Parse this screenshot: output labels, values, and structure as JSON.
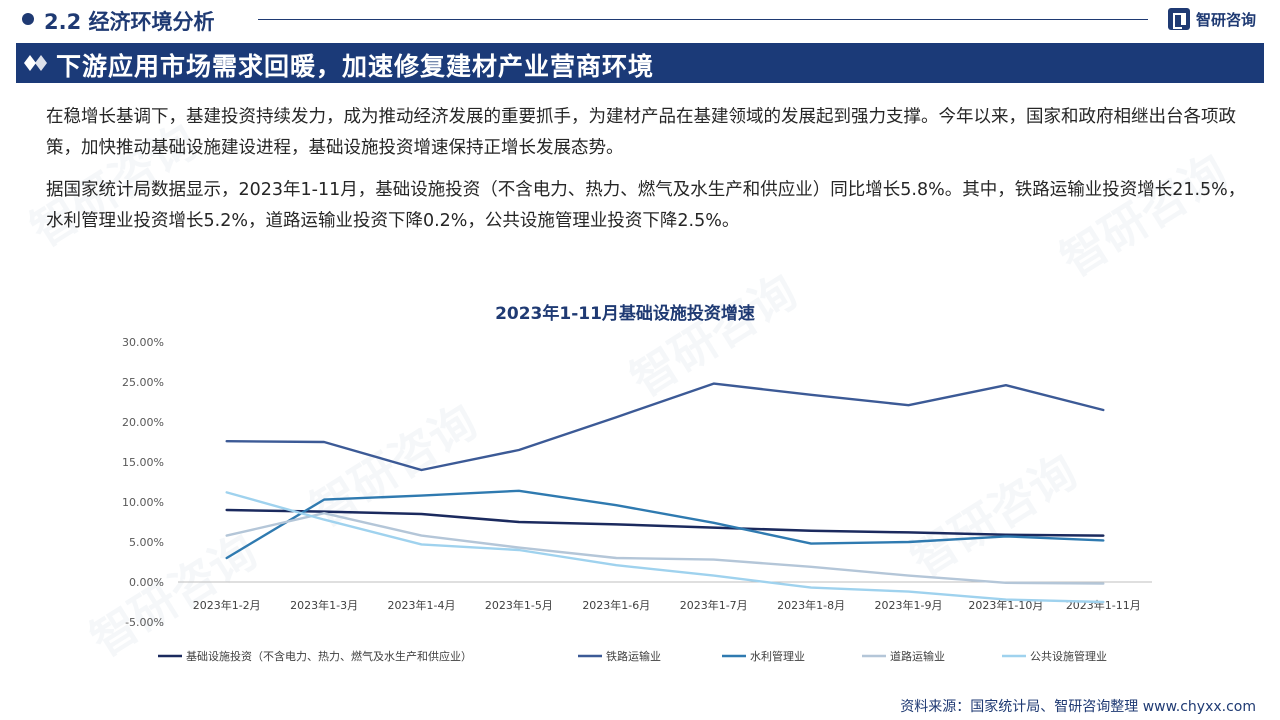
{
  "header": {
    "section_title": "2.2 经济环境分析",
    "logo_text": "智研咨询",
    "banner_title": "下游应用市场需求回暖，加速修复建材产业营商环境"
  },
  "body": {
    "paragraph_1": "在稳增长基调下，基建投资持续发力，成为推动经济发展的重要抓手，为建材产品在基建领域的发展起到强力支撑。今年以来，国家和政府相继出台各项政策，加快推动基础设施建设进程，基础设施投资增速保持正增长发展态势。",
    "paragraph_2": "据国家统计局数据显示，2023年1-11月，基础设施投资（不含电力、热力、燃气及水生产和供应业）同比增长5.8%。其中，铁路运输业投资增长21.5%，水利管理业投资增长5.2%，道路运输业投资下降0.2%，公共设施管理业投资下降2.5%。"
  },
  "watermark": "智研咨询",
  "source": "资料来源：国家统计局、智研咨询整理  www.chyxx.com",
  "colors": {
    "brand": "#1f3a73",
    "banner": "#1b3a78"
  },
  "chart_data": {
    "type": "line",
    "title": "2023年1-11月基础设施投资增速",
    "categories": [
      "2023年1-2月",
      "2023年1-3月",
      "2023年1-4月",
      "2023年1-5月",
      "2023年1-6月",
      "2023年1-7月",
      "2023年1-8月",
      "2023年1-9月",
      "2023年1-10月",
      "2023年1-11月"
    ],
    "y_ticks": [
      "30.00%",
      "25.00%",
      "20.00%",
      "15.00%",
      "10.00%",
      "5.00%",
      "0.00%",
      "-5.00%"
    ],
    "ylim": [
      -5,
      30
    ],
    "grid": false,
    "legend_position": "bottom",
    "series": [
      {
        "name": "基础设施投资（不含电力、热力、燃气及水生产和供应业）",
        "color": "#1b2a5e",
        "values": [
          9.0,
          8.8,
          8.5,
          7.5,
          7.2,
          6.8,
          6.4,
          6.2,
          5.9,
          5.8
        ]
      },
      {
        "name": "铁路运输业",
        "color": "#3c5a96",
        "values": [
          17.6,
          17.5,
          14.0,
          16.5,
          20.6,
          24.8,
          23.4,
          22.1,
          24.6,
          21.5
        ]
      },
      {
        "name": "水利管理业",
        "color": "#2f7ab0",
        "values": [
          3.0,
          10.3,
          10.8,
          11.4,
          9.6,
          7.4,
          4.8,
          5.0,
          5.7,
          5.2
        ]
      },
      {
        "name": "道路运输业",
        "color": "#b4c6d8",
        "values": [
          5.8,
          8.6,
          5.8,
          4.3,
          3.0,
          2.8,
          1.9,
          0.8,
          -0.1,
          -0.2
        ]
      },
      {
        "name": "公共设施管理业",
        "color": "#9fd2ee",
        "values": [
          11.2,
          7.8,
          4.7,
          4.0,
          2.1,
          0.8,
          -0.7,
          -1.2,
          -2.2,
          -2.5
        ]
      }
    ]
  }
}
